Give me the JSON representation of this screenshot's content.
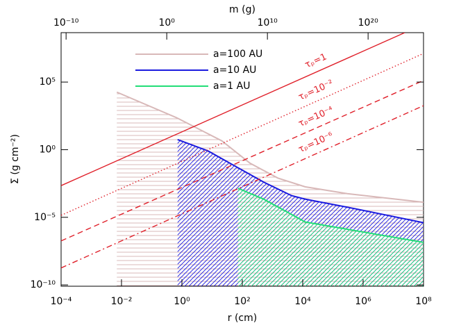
{
  "chart_data": {
    "type": "line",
    "xlabel": "r (cm)",
    "ylabel": "Σ (g cm⁻²)",
    "x2label": "m (g)",
    "xscale": "log",
    "yscale": "log",
    "legend": "upper left",
    "xlim": [
      0.0001,
      100000000.0
    ],
    "xticks": [
      {
        "value": 0.0001,
        "label": "10⁻⁴"
      },
      {
        "value": 0.01,
        "label": "10⁻²"
      },
      {
        "value": 1,
        "label": "10⁰"
      },
      {
        "value": 100,
        "label": "10²"
      },
      {
        "value": 10000.0,
        "label": "10⁴"
      },
      {
        "value": 1000000.0,
        "label": "10⁶"
      },
      {
        "value": 100000000.0,
        "label": "10⁸"
      }
    ],
    "x2lim": [
      3.2e-11,
      3.2e+25
    ],
    "x2ticks": [
      {
        "value": 1e-10,
        "label": "10⁻¹⁰"
      },
      {
        "value": 1,
        "label": "10⁰"
      },
      {
        "value": 10000000000.0,
        "label": "10¹⁰"
      },
      {
        "value": 1e+20,
        "label": "10²⁰"
      }
    ],
    "ylim": [
      8e-11,
      450000000.0
    ],
    "yticks": [
      {
        "value": 1e-10,
        "label": "10⁻¹⁰"
      },
      {
        "value": 1e-05,
        "label": "10⁻⁵"
      },
      {
        "value": 1,
        "label": "10⁰"
      },
      {
        "value": 100000.0,
        "label": "10⁵"
      }
    ],
    "series": [
      {
        "name": "a=100 AU",
        "color": "#d8b8b8",
        "hatch": "horizontal",
        "x": [
          0.007,
          0.7,
          21,
          180,
          1500,
          12000.0,
          300000.0,
          100000000.0
        ],
        "values": [
          18000.0,
          220,
          4.5,
          0.1,
          0.008,
          0.0018,
          0.00056,
          0.00013
        ]
      },
      {
        "name": "a=10 AU",
        "color": "#1a1adf",
        "hatch": "diagonal",
        "x": [
          0.72,
          7.4,
          62,
          510,
          4300,
          12000.0,
          300000.0,
          100000000.0
        ],
        "values": [
          5.6,
          0.8,
          0.056,
          0.004,
          0.0004,
          0.00022,
          5.6e-05,
          4e-06
        ]
      },
      {
        "name": "a=1 AU",
        "color": "#22dd77",
        "hatch": "diagonal",
        "x": [
          72,
          510,
          4300,
          12000.0,
          300000.0,
          100000000.0
        ],
        "values": [
          0.0014,
          0.00022,
          1.6e-05,
          4.5e-06,
          1.3e-06,
          1.4e-07
        ]
      }
    ],
    "reference_lines": [
      {
        "label": "τₚ=1",
        "style": "solid",
        "color": "#e0202a",
        "x": [
          0.0001,
          24000000.0
        ],
        "values": [
          0.0022,
          450000000.0
        ]
      },
      {
        "label": "τₚ=10⁻²",
        "style": "dotted",
        "color": "#e0202a",
        "x": [
          0.0001,
          100000000.0
        ],
        "values": [
          1.4e-05,
          13000000.0
        ]
      },
      {
        "label": "τₚ=10⁻⁴",
        "style": "dashed",
        "color": "#e0202a",
        "x": [
          0.0001,
          100000000.0
        ],
        "values": [
          1.8e-07,
          130000.0
        ]
      },
      {
        "label": "τₚ=10⁻⁶",
        "style": "dashdot",
        "color": "#e0202a",
        "x": [
          0.0001,
          100000000.0
        ],
        "values": [
          1.8e-09,
          1800.0
        ]
      }
    ]
  }
}
